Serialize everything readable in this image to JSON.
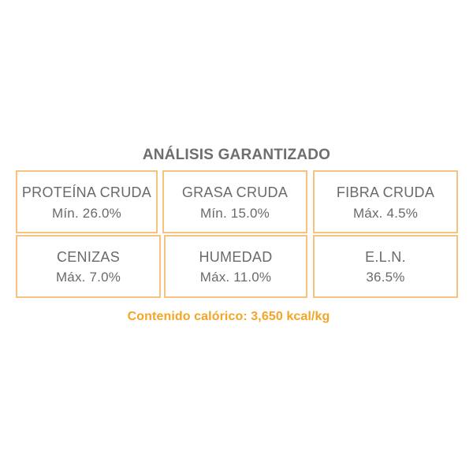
{
  "title": "ANÁLISIS GARANTIZADO",
  "items": [
    {
      "name": "PROTEÍNA CRUDA",
      "value": "Mín. 26.0%"
    },
    {
      "name": "GRASA CRUDA",
      "value": "Mín. 15.0%"
    },
    {
      "name": "FIBRA CRUDA",
      "value": "Máx. 4.5%"
    },
    {
      "name": "CENIZAS",
      "value": "Máx. 7.0%"
    },
    {
      "name": "HUMEDAD",
      "value": "Máx. 11.0%"
    },
    {
      "name": "E.L.N.",
      "value": "36.5%"
    }
  ],
  "footer": "Contenido calórico: 3,650 kcal/kg",
  "colors": {
    "border": "#f6c27d",
    "text": "#6a6a6c",
    "accent": "#f5a425"
  }
}
